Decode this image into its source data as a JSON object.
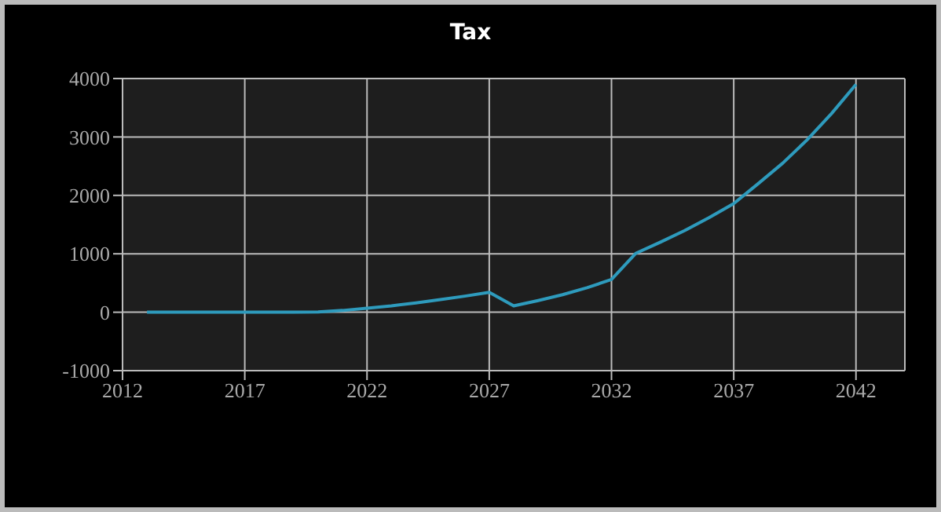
{
  "chart_data": {
    "type": "line",
    "title": "Tax",
    "x": [
      2013,
      2014,
      2015,
      2016,
      2017,
      2018,
      2019,
      2020,
      2021,
      2022,
      2023,
      2024,
      2025,
      2026,
      2027,
      2028,
      2029,
      2030,
      2031,
      2032,
      2033,
      2034,
      2035,
      2036,
      2037,
      2038,
      2039,
      2040,
      2041,
      2042
    ],
    "series": [
      {
        "color": "#2e9bbd",
        "values": [
          0,
          0,
          0,
          0,
          0,
          0,
          0,
          5,
          30,
          70,
          110,
          160,
          215,
          275,
          340,
          108,
          200,
          300,
          420,
          560,
          1010,
          1200,
          1400,
          1620,
          1860,
          2200,
          2550,
          2950,
          3400,
          3900
        ]
      }
    ],
    "xlim": [
      2012,
      2044
    ],
    "xticks": [
      2012,
      2017,
      2022,
      2027,
      2032,
      2037,
      2042
    ],
    "ylim": [
      -1000,
      4000
    ],
    "yticks": [
      -1000,
      0,
      1000,
      2000,
      3000,
      4000
    ],
    "grid": true,
    "legend": false
  }
}
